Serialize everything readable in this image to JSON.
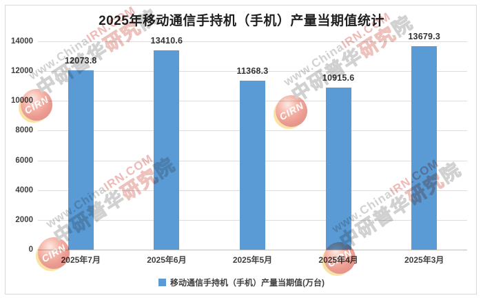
{
  "title": "2025年移动通信手持机（手机）产量当期值统计",
  "chart_data": {
    "type": "bar",
    "title": "2025年移动通信手持机（手机）产量当期值统计",
    "categories": [
      "2025年7月",
      "2025年6月",
      "2025年5月",
      "2025年4月",
      "2025年3月"
    ],
    "values": [
      12073.8,
      13410.6,
      11368.3,
      10915.6,
      13679.3
    ],
    "data_labels": [
      "12073.8",
      "13410.6",
      "11368.3",
      "10915.6",
      "13679.3"
    ],
    "xlabel": "",
    "ylabel": "",
    "ylim": [
      0,
      14000
    ],
    "yticks": [
      0,
      2000,
      4000,
      6000,
      8000,
      10000,
      12000,
      14000
    ],
    "grid": true,
    "legend_position": "bottom",
    "legend": "移动通信手持机（手机）产量当期值(万台)",
    "bar_color": "#5B9BD5"
  },
  "legend": {
    "marker_color": "#5B9BD5",
    "label": "移动通信手持机（手机）产量当期值(万台)"
  },
  "watermark": {
    "logo_text": "CIRN",
    "line1_gray": "www.China",
    "line1_red": "IRN.COM",
    "line2": "中研普华研究院",
    "line2_red_chars": [
      4,
      5
    ]
  },
  "colors": {
    "bar": "#5B9BD5",
    "grid": "#DCDCDC",
    "axis_line": "#BFBFBF",
    "title_text": "#1F1F1F",
    "label_text": "#404040",
    "frame_border": "#D9D9D9",
    "watermark_gray": "#ABABAB",
    "watermark_red": "#E0807A"
  }
}
